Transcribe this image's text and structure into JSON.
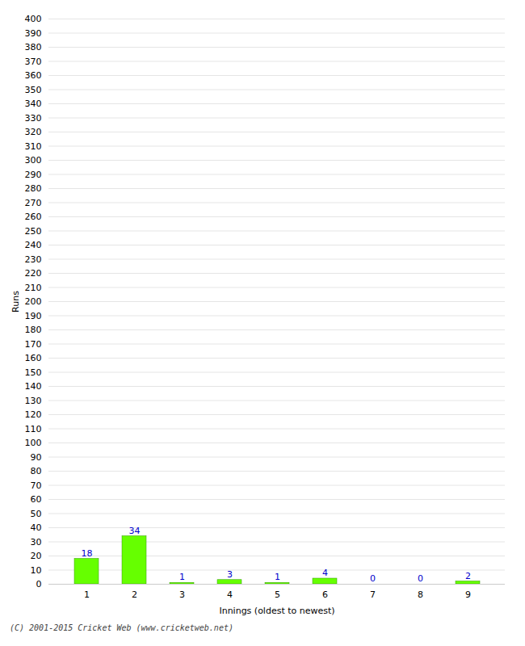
{
  "chart_data": {
    "type": "bar",
    "xlabel": "Innings (oldest to newest)",
    "ylabel": "Runs",
    "categories": [
      "1",
      "2",
      "3",
      "4",
      "5",
      "6",
      "7",
      "8",
      "9"
    ],
    "values": [
      18,
      34,
      1,
      3,
      1,
      4,
      0,
      0,
      2
    ],
    "color": "#66ff00",
    "ylim": [
      0,
      400
    ],
    "yticks": [
      0,
      10,
      20,
      30,
      40,
      50,
      60,
      70,
      80,
      90,
      100,
      110,
      120,
      130,
      140,
      150,
      160,
      170,
      180,
      190,
      200,
      210,
      220,
      230,
      240,
      250,
      260,
      270,
      280,
      290,
      300,
      310,
      320,
      330,
      340,
      350,
      360,
      370,
      380,
      390,
      400
    ],
    "grid": true,
    "data_labels": true,
    "annotations": [
      "(C) 2001-2015 Cricket Web (www.cricketweb.net)"
    ]
  }
}
